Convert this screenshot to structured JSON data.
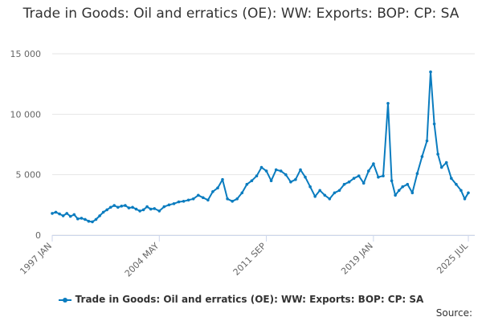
{
  "chart_data": {
    "type": "line",
    "title": "Trade in Goods: Oil and erratics (OE): WW: Exports: BOP: CP: SA",
    "xlabel": "",
    "ylabel": "",
    "ylim": [
      0,
      15000
    ],
    "yticks": [
      0,
      5000,
      10000,
      15000
    ],
    "ytick_labels": [
      "0",
      "5 000",
      "10 000",
      "15 000"
    ],
    "xlim": [
      "1997-01",
      "2025-07"
    ],
    "xticks": [
      "1997-01",
      "2004-05",
      "2011-09",
      "2019-01",
      "2025-07"
    ],
    "xtick_labels": [
      "1997 JAN",
      "2004 MAY",
      "2011 SEP",
      "2019 JAN",
      "2025 JUL"
    ],
    "grid": true,
    "legend_position": "bottom",
    "colors": {
      "series": "#0a7cbf",
      "grid": "#e6e6e6",
      "axis": "#ccd6eb",
      "text": "#666666"
    },
    "series": [
      {
        "name": "Trade in Goods: Oil and erratics (OE): WW: Exports: BOP: CP: SA",
        "points": [
          [
            "1997-01",
            1800
          ],
          [
            "1997-04",
            1900
          ],
          [
            "1997-07",
            1750
          ],
          [
            "1997-10",
            1600
          ],
          [
            "1998-01",
            1800
          ],
          [
            "1998-04",
            1550
          ],
          [
            "1998-07",
            1700
          ],
          [
            "1998-10",
            1350
          ],
          [
            "1999-01",
            1400
          ],
          [
            "1999-04",
            1300
          ],
          [
            "1999-07",
            1150
          ],
          [
            "1999-10",
            1100
          ],
          [
            "2000-01",
            1300
          ],
          [
            "2000-04",
            1600
          ],
          [
            "2000-07",
            1900
          ],
          [
            "2000-10",
            2100
          ],
          [
            "2001-01",
            2300
          ],
          [
            "2001-04",
            2450
          ],
          [
            "2001-07",
            2300
          ],
          [
            "2001-10",
            2400
          ],
          [
            "2002-01",
            2450
          ],
          [
            "2002-04",
            2250
          ],
          [
            "2002-07",
            2300
          ],
          [
            "2002-10",
            2150
          ],
          [
            "2003-01",
            2000
          ],
          [
            "2003-04",
            2100
          ],
          [
            "2003-07",
            2350
          ],
          [
            "2003-10",
            2150
          ],
          [
            "2004-01",
            2200
          ],
          [
            "2004-05",
            2000
          ],
          [
            "2004-09",
            2350
          ],
          [
            "2005-01",
            2500
          ],
          [
            "2005-05",
            2600
          ],
          [
            "2005-09",
            2750
          ],
          [
            "2006-01",
            2800
          ],
          [
            "2006-05",
            2900
          ],
          [
            "2006-09",
            3000
          ],
          [
            "2007-01",
            3300
          ],
          [
            "2007-05",
            3100
          ],
          [
            "2007-09",
            2900
          ],
          [
            "2008-01",
            3600
          ],
          [
            "2008-05",
            3900
          ],
          [
            "2008-09",
            4600
          ],
          [
            "2009-01",
            3000
          ],
          [
            "2009-05",
            2800
          ],
          [
            "2009-09",
            3000
          ],
          [
            "2010-01",
            3500
          ],
          [
            "2010-05",
            4200
          ],
          [
            "2010-09",
            4500
          ],
          [
            "2011-01",
            4900
          ],
          [
            "2011-05",
            5600
          ],
          [
            "2011-09",
            5300
          ],
          [
            "2012-01",
            4500
          ],
          [
            "2012-05",
            5400
          ],
          [
            "2012-09",
            5300
          ],
          [
            "2013-01",
            5000
          ],
          [
            "2013-05",
            4400
          ],
          [
            "2013-09",
            4600
          ],
          [
            "2014-01",
            5400
          ],
          [
            "2014-05",
            4800
          ],
          [
            "2014-09",
            4000
          ],
          [
            "2015-01",
            3200
          ],
          [
            "2015-05",
            3700
          ],
          [
            "2015-09",
            3300
          ],
          [
            "2016-01",
            3000
          ],
          [
            "2016-05",
            3500
          ],
          [
            "2016-09",
            3700
          ],
          [
            "2017-01",
            4200
          ],
          [
            "2017-05",
            4400
          ],
          [
            "2017-09",
            4700
          ],
          [
            "2018-01",
            4900
          ],
          [
            "2018-05",
            4300
          ],
          [
            "2018-09",
            5300
          ],
          [
            "2019-01",
            5900
          ],
          [
            "2019-05",
            4800
          ],
          [
            "2019-09",
            4900
          ],
          [
            "2020-01",
            10900
          ],
          [
            "2020-04",
            4500
          ],
          [
            "2020-07",
            3300
          ],
          [
            "2020-10",
            3700
          ],
          [
            "2021-01",
            4000
          ],
          [
            "2021-05",
            4200
          ],
          [
            "2021-09",
            3500
          ],
          [
            "2022-01",
            5100
          ],
          [
            "2022-05",
            6500
          ],
          [
            "2022-09",
            7800
          ],
          [
            "2022-12",
            13500
          ],
          [
            "2023-03",
            9200
          ],
          [
            "2023-06",
            6700
          ],
          [
            "2023-09",
            5600
          ],
          [
            "2024-01",
            6000
          ],
          [
            "2024-05",
            4700
          ],
          [
            "2024-09",
            4200
          ],
          [
            "2025-01",
            3700
          ],
          [
            "2025-04",
            3000
          ],
          [
            "2025-07",
            3500
          ]
        ]
      }
    ],
    "source_label": "Source:"
  }
}
